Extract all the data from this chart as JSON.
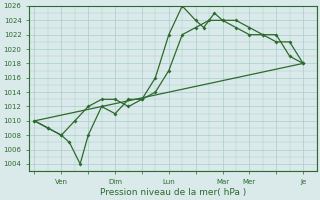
{
  "title": "",
  "xlabel": "Pression niveau de la mer( hPa )",
  "ylabel": "",
  "bg_color": "#daeaea",
  "grid_color": "#aacccc",
  "line_color": "#2d6a2d",
  "ylim": [
    1003,
    1026
  ],
  "x_labels": [
    "",
    "Ven",
    "",
    "Dim",
    "",
    "Lun",
    "",
    "Mar",
    "Mer",
    "",
    "Je"
  ],
  "x_positions": [
    0,
    1,
    2,
    3,
    4,
    5,
    6,
    7,
    8,
    9,
    10
  ],
  "series1": {
    "x": [
      0.0,
      0.5,
      1.0,
      1.3,
      1.7,
      2.0,
      2.5,
      3.0,
      3.5,
      4.0,
      4.5,
      5.0,
      5.5,
      6.0,
      6.3,
      6.7,
      7.0,
      7.5,
      8.0,
      8.5,
      9.0,
      9.5,
      10.0
    ],
    "y": [
      1010,
      1009,
      1008,
      1007,
      1004,
      1008,
      1012,
      1011,
      1013,
      1013,
      1016,
      1022,
      1026,
      1024,
      1023,
      1025,
      1024,
      1024,
      1023,
      1022,
      1022,
      1019,
      1018
    ]
  },
  "series2": {
    "x": [
      0.0,
      0.5,
      1.0,
      1.5,
      2.0,
      2.5,
      3.0,
      3.5,
      4.0,
      4.5,
      5.0,
      5.5,
      6.0,
      6.5,
      7.0,
      7.5,
      8.0,
      8.5,
      9.0,
      9.5,
      10.0
    ],
    "y": [
      1010,
      1009,
      1008,
      1010,
      1012,
      1013,
      1013,
      1012,
      1013,
      1014,
      1017,
      1022,
      1023,
      1024,
      1024,
      1023,
      1022,
      1022,
      1021,
      1021,
      1018
    ]
  },
  "series3": {
    "x": [
      0.0,
      10.0
    ],
    "y": [
      1010,
      1018
    ]
  }
}
